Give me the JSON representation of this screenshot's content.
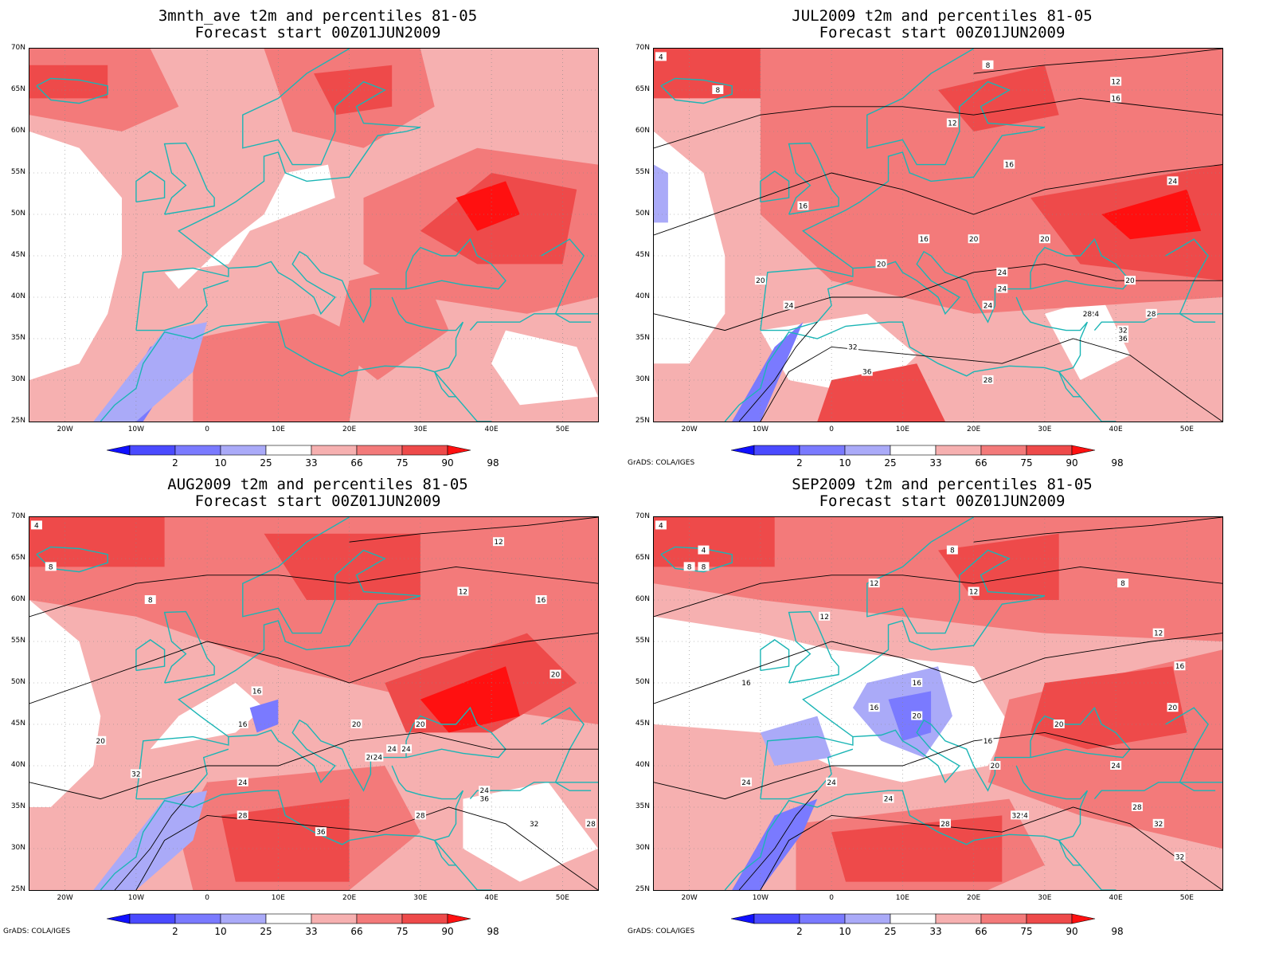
{
  "panels": [
    {
      "id": "p1",
      "title1": "3mnth_ave t2m and percentiles 81-05",
      "title2": "Forecast start 00Z01JUN2009",
      "credit": ""
    },
    {
      "id": "p2",
      "title1": "JUL2009 t2m and percentiles 81-05",
      "title2": "Forecast start 00Z01JUN2009",
      "credit": "GrADS: COLA/IGES"
    },
    {
      "id": "p3",
      "title1": "AUG2009 t2m and percentiles 81-05",
      "title2": "Forecast start 00Z01JUN2009",
      "credit": "GrADS: COLA/IGES"
    },
    {
      "id": "p4",
      "title1": "SEP2009 t2m and percentiles 81-05",
      "title2": "Forecast start 00Z01JUN2009",
      "credit": "GrADS: COLA/IGES"
    }
  ],
  "latitudes": [
    "70N",
    "65N",
    "60N",
    "55N",
    "50N",
    "45N",
    "40N",
    "35N",
    "30N",
    "25N"
  ],
  "longitudes": [
    "20W",
    "10W",
    "0",
    "10E",
    "20E",
    "30E",
    "40E",
    "50E"
  ],
  "colorbar": {
    "labels": [
      "2",
      "10",
      "25",
      "33",
      "66",
      "75",
      "90",
      "98"
    ],
    "colors": [
      "#1010ff",
      "#4a4aff",
      "#7a7aff",
      "#aaaaf8",
      "#ffffff",
      "#f6b0b0",
      "#f37a7a",
      "#ee4a4a",
      "#ff1010"
    ]
  },
  "contours": {
    "p1": [],
    "p2": [
      "4",
      "8",
      "8",
      "12",
      "12",
      "16",
      "16",
      "16",
      "16",
      "20",
      "20",
      "20",
      "20",
      "20",
      "24",
      "24",
      "24",
      "24",
      "24",
      "24",
      "28",
      "28",
      "28",
      "32",
      "32",
      "36",
      "36"
    ],
    "p3": [
      "4",
      "8",
      "8",
      "12",
      "12",
      "16",
      "16",
      "16",
      "20",
      "20",
      "20",
      "20",
      "20",
      "24",
      "24",
      "24",
      "24",
      "24",
      "28",
      "28",
      "28",
      "32",
      "32",
      "36",
      "36"
    ],
    "p4": [
      "4",
      "4",
      "8",
      "8",
      "8",
      "8",
      "12",
      "12",
      "12",
      "12",
      "16",
      "16",
      "16",
      "16",
      "16",
      "20",
      "20",
      "20",
      "20",
      "24",
      "24",
      "24",
      "24",
      "24",
      "28",
      "28",
      "32",
      "32",
      "32"
    ]
  }
}
